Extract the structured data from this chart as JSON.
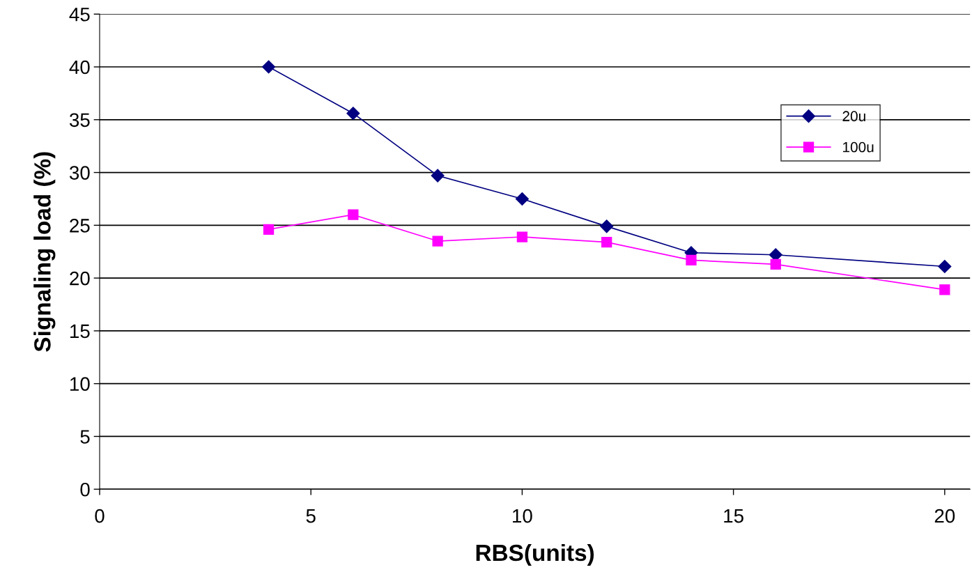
{
  "chart_data": {
    "type": "line",
    "xlabel": "RBS(units)",
    "ylabel": "Signaling load (%)",
    "xlim": [
      0,
      20.6
    ],
    "xticks": [
      0,
      5,
      10,
      15,
      20
    ],
    "ylim": [
      0,
      45
    ],
    "yticks": [
      0,
      5,
      10,
      15,
      20,
      25,
      30,
      35,
      40,
      45
    ],
    "grid": "y",
    "legend": "right",
    "line_style": "solid",
    "series": [
      {
        "name": "20u",
        "color": "#000080",
        "marker": "diamond",
        "x": [
          4,
          6,
          8,
          10,
          12,
          14,
          16,
          20
        ],
        "values": [
          40,
          35.6,
          29.7,
          27.5,
          24.9,
          22.4,
          22.2,
          21.1
        ]
      },
      {
        "name": "100u",
        "color": "#ff00ff",
        "marker": "square",
        "x": [
          4,
          6,
          8,
          10,
          12,
          14,
          16,
          20
        ],
        "values": [
          24.6,
          26,
          23.5,
          23.9,
          23.4,
          21.7,
          21.3,
          18.9
        ]
      }
    ]
  }
}
